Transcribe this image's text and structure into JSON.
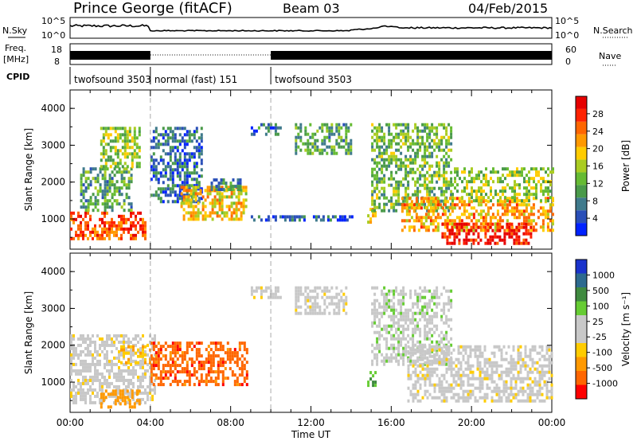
{
  "header": {
    "station": "Prince George (fitACF)",
    "beam": "Beam 03",
    "date": "04/Feb/2015"
  },
  "summary": {
    "nsky_label": "N.Sky",
    "nsearch_label": "N.Search",
    "nsky_ticks": [
      "10^5",
      "10^0"
    ],
    "freq_label": "Freq.",
    "freq_unit": "[MHz]",
    "freq_ticks": [
      "18",
      "8"
    ],
    "nave_label": "Nave",
    "nave_ticks": [
      "60",
      "0"
    ],
    "cpid_label": "CPID",
    "cpid_segments": [
      {
        "label": "twofsound 3503",
        "start": 0.0,
        "end": 4.0
      },
      {
        "label": "normal (fast) 151",
        "start": 4.0,
        "end": 10.0
      },
      {
        "label": "twofsound 3503",
        "start": 10.0,
        "end": 24.0
      }
    ]
  },
  "chart_data": [
    {
      "type": "heatmap",
      "title": "",
      "quantity": "Power",
      "xlabel": "",
      "ylabel": "Slant Range [km]",
      "xlim": [
        0,
        24
      ],
      "ylim": [
        180,
        4500
      ],
      "yticks": [
        "1000",
        "2000",
        "3000",
        "4000"
      ],
      "colorbar": {
        "label": "Power [dB]",
        "ticks": [
          "4",
          "8",
          "12",
          "16",
          "20",
          "24",
          "28"
        ],
        "colors": [
          "#0022ff",
          "#2a4fb8",
          "#3f7a8c",
          "#4a9a4a",
          "#66bb33",
          "#aacc22",
          "#ffcc00",
          "#ff9900",
          "#ff6600",
          "#ff2200",
          "#e60000"
        ]
      },
      "regions": [
        {
          "t0": 0.0,
          "t1": 3.8,
          "r0": 450,
          "r1": 1200,
          "level": 24
        },
        {
          "t0": 0.5,
          "t1": 3.0,
          "r0": 1200,
          "r1": 2400,
          "level": 10
        },
        {
          "t0": 1.5,
          "t1": 3.5,
          "r0": 2400,
          "r1": 3500,
          "level": 14
        },
        {
          "t0": 4.0,
          "t1": 6.5,
          "r0": 1500,
          "r1": 3500,
          "level": 6
        },
        {
          "t0": 5.5,
          "t1": 8.8,
          "r0": 1000,
          "r1": 1900,
          "level": 18
        },
        {
          "t0": 7.0,
          "t1": 8.5,
          "r0": 1800,
          "r1": 2100,
          "level": 8
        },
        {
          "t0": 9.0,
          "t1": 14.0,
          "r0": 950,
          "r1": 1100,
          "level": 5
        },
        {
          "t0": 9.0,
          "t1": 10.5,
          "r0": 3300,
          "r1": 3600,
          "level": 6
        },
        {
          "t0": 11.2,
          "t1": 14.0,
          "r0": 2800,
          "r1": 3600,
          "level": 10
        },
        {
          "t0": 14.8,
          "t1": 15.2,
          "r0": 900,
          "r1": 1300,
          "level": 18
        },
        {
          "t0": 15.0,
          "t1": 19.0,
          "r0": 1200,
          "r1": 3600,
          "level": 12
        },
        {
          "t0": 16.5,
          "t1": 24.0,
          "r0": 700,
          "r1": 1600,
          "level": 20
        },
        {
          "t0": 18.5,
          "t1": 23.0,
          "r0": 350,
          "r1": 900,
          "level": 28
        },
        {
          "t0": 19.0,
          "t1": 24.0,
          "r0": 1500,
          "r1": 2400,
          "level": 14
        }
      ]
    },
    {
      "type": "heatmap",
      "title": "",
      "quantity": "Velocity",
      "xlabel": "Time UT",
      "ylabel": "Slant Range [km]",
      "xlim": [
        0,
        24
      ],
      "ylim": [
        180,
        4500
      ],
      "xticks": [
        "00:00",
        "04:00",
        "08:00",
        "12:00",
        "16:00",
        "20:00",
        "00:00"
      ],
      "yticks": [
        "1000",
        "2000",
        "3000",
        "4000"
      ],
      "colorbar": {
        "label": "Velocity [m s⁻¹]",
        "ticks": [
          "1000",
          "500",
          "100",
          "25",
          "-25",
          "-100",
          "-500",
          "-1000"
        ],
        "colors": [
          "#1a33cc",
          "#2d6a8f",
          "#3f8a3f",
          "#66cc33",
          "#c8c8c8",
          "#c8c8c8",
          "#ffcc00",
          "#ff9900",
          "#ff6600",
          "#ff0000"
        ]
      },
      "regions": [
        {
          "t0": 0.0,
          "t1": 4.2,
          "r0": 400,
          "r1": 2300,
          "level": 0
        },
        {
          "t0": 1.5,
          "t1": 3.5,
          "r0": 300,
          "r1": 800,
          "level": -150
        },
        {
          "t0": 2.5,
          "t1": 4.0,
          "r0": 1500,
          "r1": 2000,
          "level": -100
        },
        {
          "t0": 4.0,
          "t1": 8.8,
          "r0": 900,
          "r1": 2100,
          "level": -400
        },
        {
          "t0": 9.0,
          "t1": 10.5,
          "r0": 3300,
          "r1": 3600,
          "level": 0
        },
        {
          "t0": 11.2,
          "t1": 13.8,
          "r0": 2900,
          "r1": 3600,
          "level": 0
        },
        {
          "t0": 14.8,
          "t1": 15.2,
          "r0": 900,
          "r1": 1300,
          "level": 300
        },
        {
          "t0": 15.0,
          "t1": 19.0,
          "r0": 1500,
          "r1": 3600,
          "level": 80
        },
        {
          "t0": 16.8,
          "t1": 24.0,
          "r0": 500,
          "r1": 2000,
          "level": 0
        }
      ]
    }
  ]
}
